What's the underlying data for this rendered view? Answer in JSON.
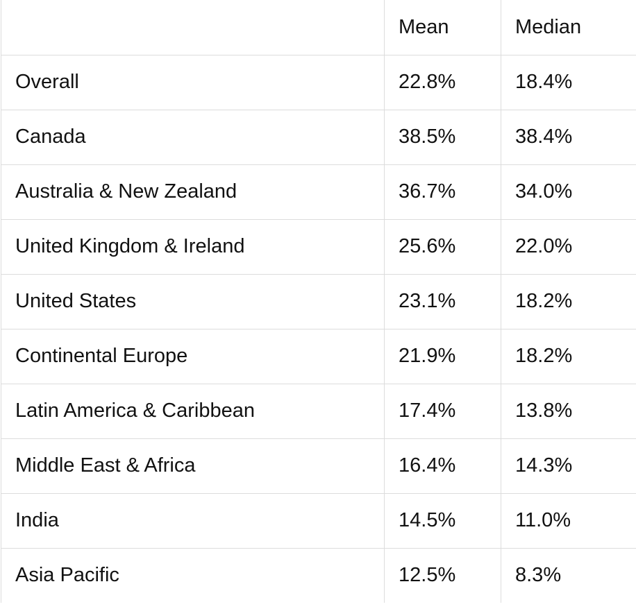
{
  "table": {
    "headers": [
      "",
      "Mean",
      "Median"
    ],
    "rows": [
      {
        "region": "Overall",
        "mean": "22.8%",
        "median": "18.4%"
      },
      {
        "region": "Canada",
        "mean": "38.5%",
        "median": "38.4%"
      },
      {
        "region": "Australia & New Zealand",
        "mean": "36.7%",
        "median": "34.0%"
      },
      {
        "region": "United Kingdom & Ireland",
        "mean": "25.6%",
        "median": "22.0%"
      },
      {
        "region": "United States",
        "mean": "23.1%",
        "median": "18.2%"
      },
      {
        "region": "Continental Europe",
        "mean": "21.9%",
        "median": "18.2%"
      },
      {
        "region": "Latin America & Caribbean",
        "mean": "17.4%",
        "median": "13.8%"
      },
      {
        "region": "Middle East & Africa",
        "mean": "16.4%",
        "median": "14.3%"
      },
      {
        "region": "India",
        "mean": "14.5%",
        "median": "11.0%"
      },
      {
        "region": "Asia Pacific",
        "mean": "12.5%",
        "median": "8.3%"
      }
    ]
  }
}
